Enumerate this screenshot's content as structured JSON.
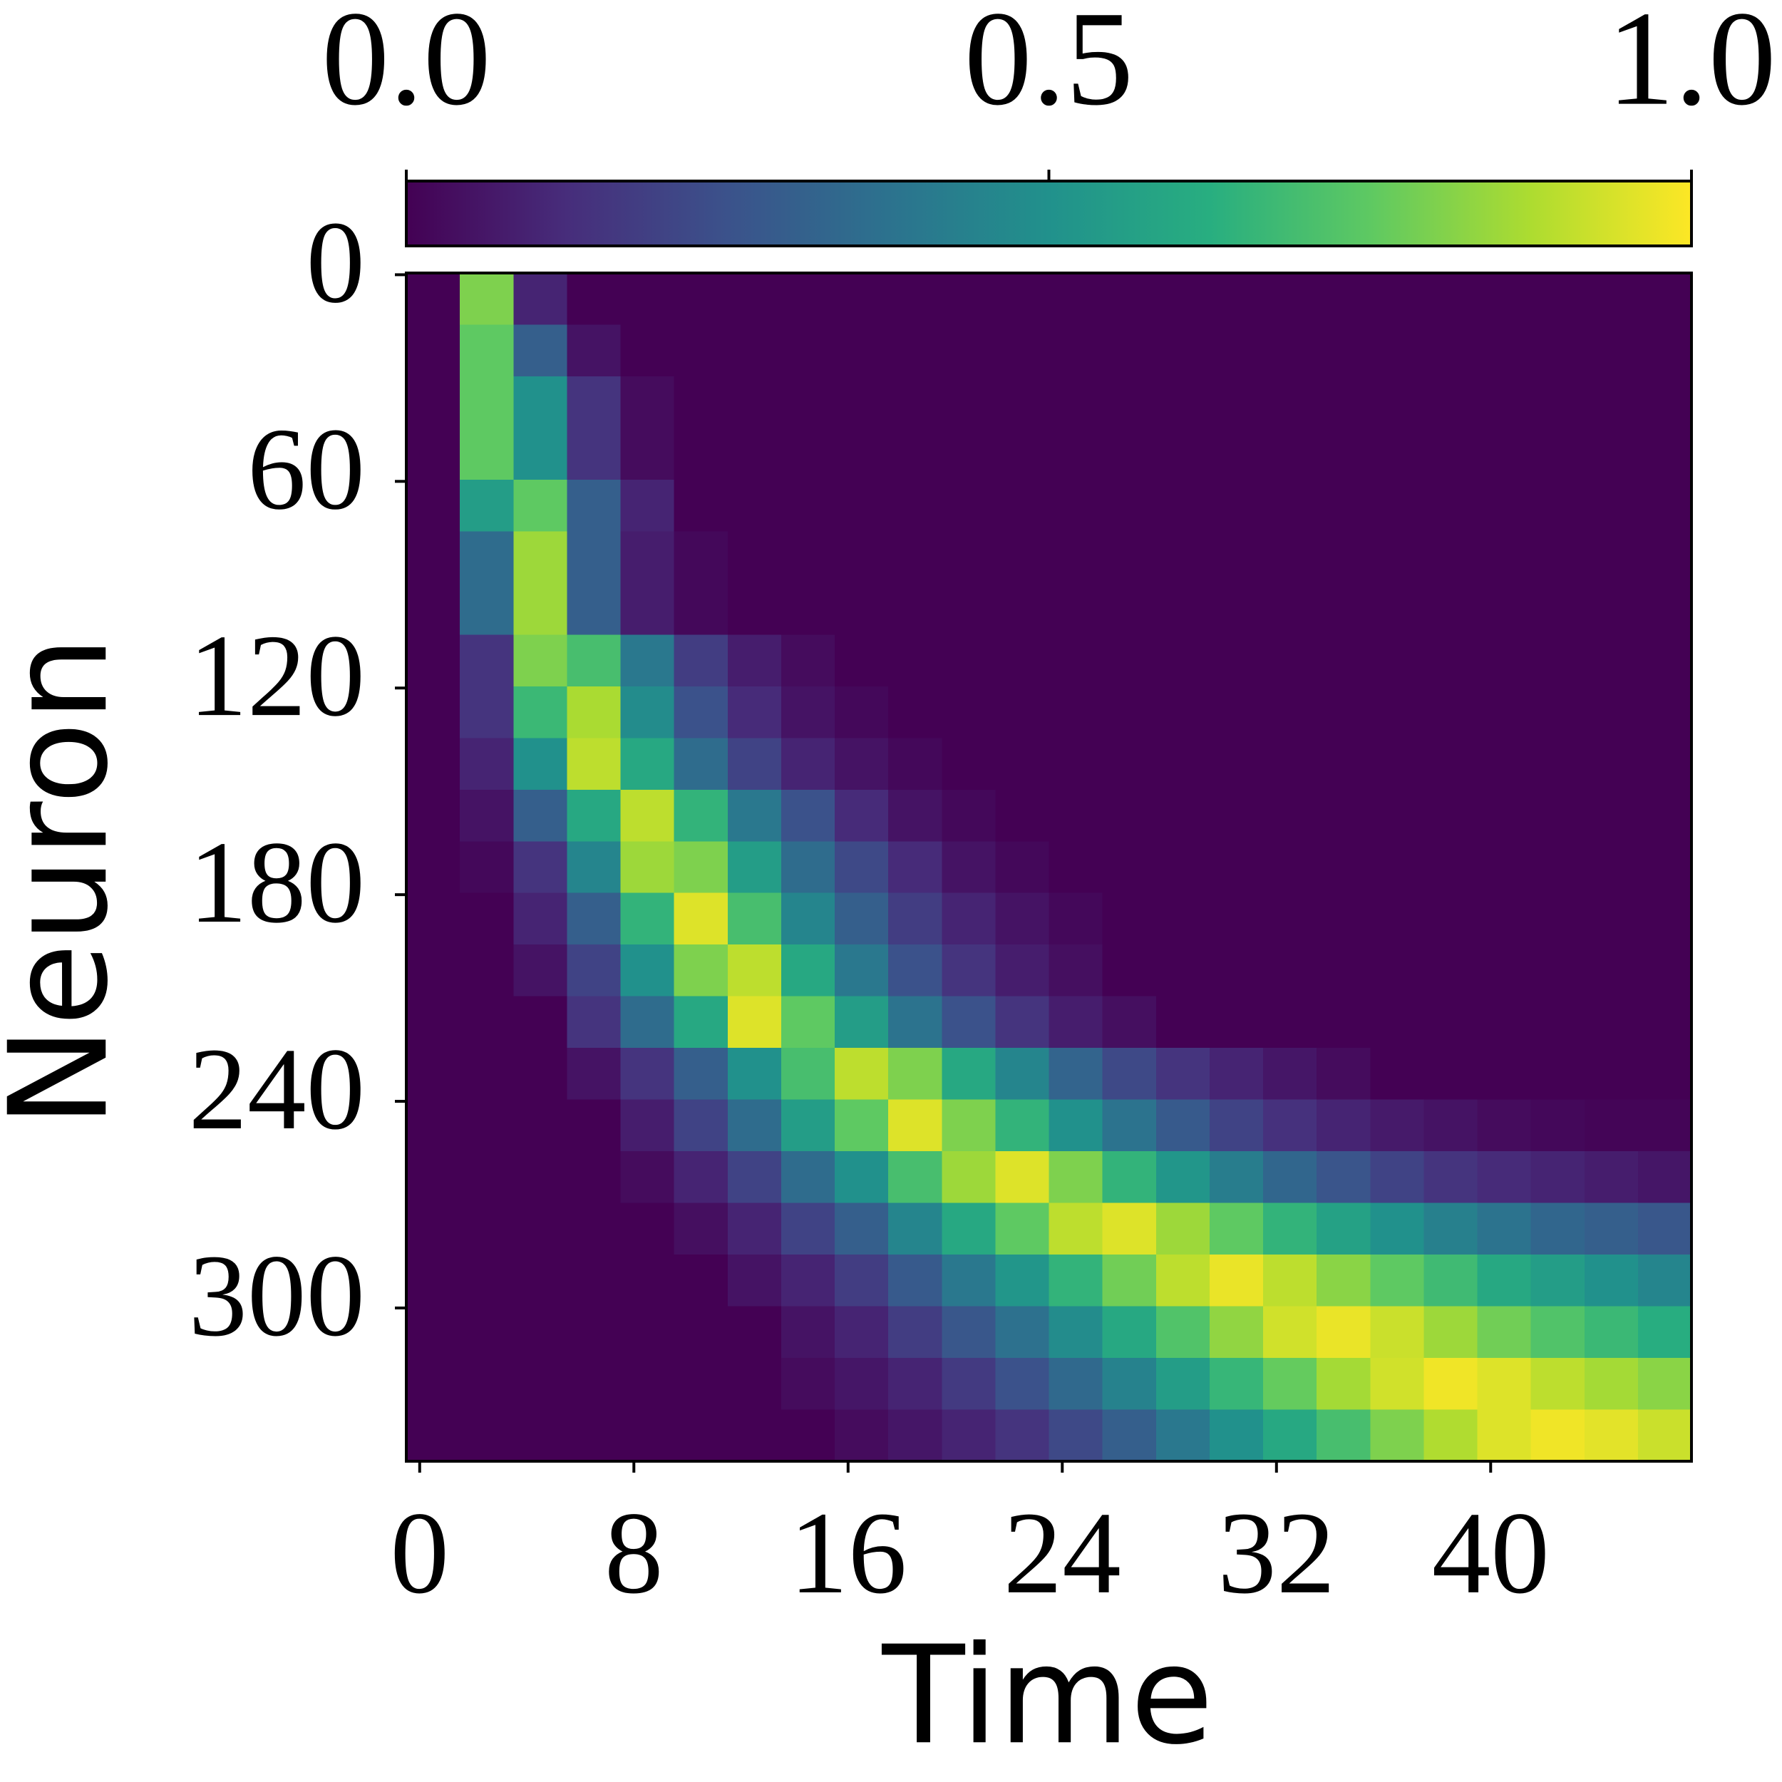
{
  "chart_data": {
    "type": "heatmap",
    "xlabel": "Time",
    "ylabel": "Neuron",
    "colormap": "viridis",
    "x": [
      0.5,
      2.5,
      4.5,
      6.5,
      8.5,
      10.5,
      12.5,
      14.5,
      16.5,
      18.5,
      20.5,
      22.5,
      24.5,
      26.5,
      28.5,
      30.5,
      32.5,
      34.5,
      36.5,
      38.5,
      40.5,
      42.5,
      44.5,
      46.5
    ],
    "y": [
      7,
      22,
      37,
      52,
      67,
      82,
      97,
      112,
      127,
      142,
      157,
      172,
      187,
      202,
      217,
      232,
      247,
      262,
      277,
      292,
      307,
      322,
      337
    ],
    "z": [
      [
        0,
        0.8,
        0.1,
        0,
        0,
        0,
        0,
        0,
        0,
        0,
        0,
        0,
        0,
        0,
        0,
        0,
        0,
        0,
        0,
        0,
        0,
        0,
        0,
        0
      ],
      [
        0,
        0.75,
        0.3,
        0.05,
        0,
        0,
        0,
        0,
        0,
        0,
        0,
        0,
        0,
        0,
        0,
        0,
        0,
        0,
        0,
        0,
        0,
        0,
        0,
        0
      ],
      [
        0,
        0.75,
        0.5,
        0.15,
        0.03,
        0,
        0,
        0,
        0,
        0,
        0,
        0,
        0,
        0,
        0,
        0,
        0,
        0,
        0,
        0,
        0,
        0,
        0,
        0
      ],
      [
        0,
        0.75,
        0.5,
        0.15,
        0.03,
        0,
        0,
        0,
        0,
        0,
        0,
        0,
        0,
        0,
        0,
        0,
        0,
        0,
        0,
        0,
        0,
        0,
        0,
        0
      ],
      [
        0,
        0.55,
        0.75,
        0.3,
        0.1,
        0,
        0,
        0,
        0,
        0,
        0,
        0,
        0,
        0,
        0,
        0,
        0,
        0,
        0,
        0,
        0,
        0,
        0,
        0
      ],
      [
        0,
        0.35,
        0.85,
        0.3,
        0.08,
        0.02,
        0,
        0,
        0,
        0,
        0,
        0,
        0,
        0,
        0,
        0,
        0,
        0,
        0,
        0,
        0,
        0,
        0,
        0
      ],
      [
        0,
        0.35,
        0.85,
        0.3,
        0.08,
        0.02,
        0,
        0,
        0,
        0,
        0,
        0,
        0,
        0,
        0,
        0,
        0,
        0,
        0,
        0,
        0,
        0,
        0,
        0
      ],
      [
        0,
        0.15,
        0.8,
        0.7,
        0.4,
        0.18,
        0.08,
        0.03,
        0,
        0,
        0,
        0,
        0,
        0,
        0,
        0,
        0,
        0,
        0,
        0,
        0,
        0,
        0,
        0
      ],
      [
        0,
        0.15,
        0.67,
        0.87,
        0.48,
        0.25,
        0.12,
        0.05,
        0.02,
        0,
        0,
        0,
        0,
        0,
        0,
        0,
        0,
        0,
        0,
        0,
        0,
        0,
        0,
        0
      ],
      [
        0,
        0.1,
        0.5,
        0.9,
        0.6,
        0.35,
        0.2,
        0.1,
        0.05,
        0.02,
        0,
        0,
        0,
        0,
        0,
        0,
        0,
        0,
        0,
        0,
        0,
        0,
        0,
        0
      ],
      [
        0,
        0.05,
        0.3,
        0.6,
        0.9,
        0.65,
        0.4,
        0.25,
        0.12,
        0.05,
        0.02,
        0,
        0,
        0,
        0,
        0,
        0,
        0,
        0,
        0,
        0,
        0,
        0,
        0
      ],
      [
        0,
        0.02,
        0.15,
        0.45,
        0.85,
        0.8,
        0.55,
        0.35,
        0.22,
        0.12,
        0.05,
        0.02,
        0,
        0,
        0,
        0,
        0,
        0,
        0,
        0,
        0,
        0,
        0,
        0
      ],
      [
        0,
        0,
        0.1,
        0.3,
        0.65,
        0.95,
        0.7,
        0.45,
        0.3,
        0.18,
        0.1,
        0.05,
        0.02,
        0,
        0,
        0,
        0,
        0,
        0,
        0,
        0,
        0,
        0,
        0
      ],
      [
        0,
        0,
        0.05,
        0.2,
        0.5,
        0.8,
        0.9,
        0.6,
        0.4,
        0.25,
        0.15,
        0.08,
        0.04,
        0,
        0,
        0,
        0,
        0,
        0,
        0,
        0,
        0,
        0,
        0
      ],
      [
        0,
        0,
        0,
        0.15,
        0.35,
        0.6,
        0.95,
        0.75,
        0.55,
        0.38,
        0.25,
        0.15,
        0.08,
        0.04,
        0,
        0,
        0,
        0,
        0,
        0,
        0,
        0,
        0,
        0
      ],
      [
        0,
        0,
        0,
        0.05,
        0.15,
        0.3,
        0.5,
        0.7,
        0.9,
        0.8,
        0.6,
        0.45,
        0.32,
        0.22,
        0.15,
        0.1,
        0.06,
        0.03,
        0,
        0,
        0,
        0,
        0,
        0
      ],
      [
        0,
        0,
        0,
        0,
        0.08,
        0.2,
        0.35,
        0.55,
        0.75,
        0.95,
        0.8,
        0.65,
        0.5,
        0.38,
        0.28,
        0.2,
        0.14,
        0.1,
        0.07,
        0.05,
        0.03,
        0.02,
        0.01,
        0.01
      ],
      [
        0,
        0,
        0,
        0,
        0.03,
        0.1,
        0.2,
        0.35,
        0.5,
        0.7,
        0.85,
        0.95,
        0.8,
        0.65,
        0.52,
        0.42,
        0.33,
        0.26,
        0.2,
        0.15,
        0.12,
        0.1,
        0.08,
        0.06
      ],
      [
        0,
        0,
        0,
        0,
        0,
        0.04,
        0.1,
        0.2,
        0.3,
        0.45,
        0.6,
        0.75,
        0.9,
        0.95,
        0.85,
        0.75,
        0.65,
        0.57,
        0.5,
        0.43,
        0.38,
        0.33,
        0.3,
        0.27
      ],
      [
        0,
        0,
        0,
        0,
        0,
        0,
        0.05,
        0.1,
        0.18,
        0.28,
        0.4,
        0.52,
        0.65,
        0.78,
        0.9,
        0.97,
        0.9,
        0.82,
        0.75,
        0.68,
        0.6,
        0.55,
        0.5,
        0.45
      ],
      [
        0,
        0,
        0,
        0,
        0,
        0,
        0,
        0.05,
        0.1,
        0.18,
        0.27,
        0.37,
        0.48,
        0.6,
        0.72,
        0.83,
        0.93,
        0.97,
        0.92,
        0.85,
        0.78,
        0.72,
        0.67,
        0.62
      ],
      [
        0,
        0,
        0,
        0,
        0,
        0,
        0,
        0.03,
        0.06,
        0.1,
        0.17,
        0.25,
        0.34,
        0.44,
        0.55,
        0.66,
        0.76,
        0.86,
        0.93,
        0.98,
        0.95,
        0.9,
        0.86,
        0.82
      ],
      [
        0,
        0,
        0,
        0,
        0,
        0,
        0,
        0,
        0.03,
        0.06,
        0.1,
        0.15,
        0.22,
        0.3,
        0.4,
        0.5,
        0.6,
        0.7,
        0.8,
        0.88,
        0.95,
        0.98,
        0.96,
        0.92
      ]
    ],
    "xlim": [
      -0.5,
      47.5
    ],
    "ylim": [
      344.5,
      -0.5
    ],
    "xticks": [
      0,
      8,
      16,
      24,
      32,
      40
    ],
    "yticks": [
      0,
      60,
      120,
      180,
      240,
      300
    ],
    "clim": [
      0,
      1
    ],
    "cticks": [
      {
        "value": 0,
        "label": "0.0"
      },
      {
        "value": 0.5,
        "label": "0.5"
      },
      {
        "value": 1,
        "label": "1.0"
      }
    ]
  }
}
